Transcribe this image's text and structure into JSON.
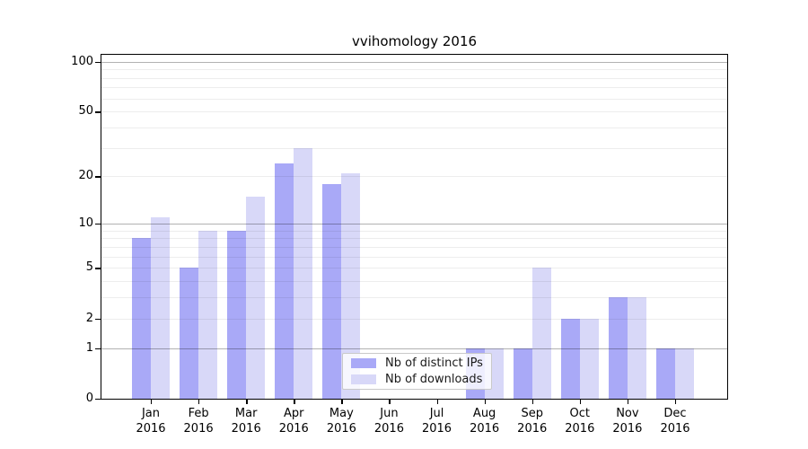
{
  "chart_data": {
    "type": "bar",
    "title": "vvihomology 2016",
    "categories": [
      "Jan",
      "Feb",
      "Mar",
      "Apr",
      "May",
      "Jun",
      "Jul",
      "Aug",
      "Sep",
      "Oct",
      "Nov",
      "Dec"
    ],
    "x_year_label": "2016",
    "series": [
      {
        "name": "Nb of distinct IPs",
        "key": "distinct-ips",
        "color": "#a9a9f7",
        "values": [
          8,
          5,
          9,
          24,
          18,
          0,
          0,
          1,
          1,
          2,
          3,
          1
        ]
      },
      {
        "name": "Nb of downloads",
        "key": "downloads",
        "color": "#d8d8f8",
        "values": [
          11,
          9,
          15,
          30,
          21,
          0,
          0,
          1,
          5,
          2,
          3,
          1
        ]
      }
    ],
    "y_axis": {
      "scale": "log1p",
      "tick_values": [
        0,
        1,
        2,
        5,
        10,
        20,
        50,
        100
      ],
      "major_grid_values": [
        1,
        10,
        100
      ],
      "minor_grid_values": [
        2,
        3,
        4,
        5,
        6,
        7,
        8,
        9,
        20,
        30,
        40,
        50,
        60,
        70,
        80,
        90
      ],
      "ylim": [
        0,
        110
      ]
    },
    "legend_position": "lower-center",
    "grid": true
  },
  "colors": {
    "background": "#ffffff",
    "spine": "#000000",
    "grid_major": "rgba(0,0,0,0.30)",
    "grid_minor": "rgba(0,0,0,0.07)",
    "legend_border": "#c9c9c9",
    "legend_background": "rgba(255,255,255,0.8)"
  }
}
